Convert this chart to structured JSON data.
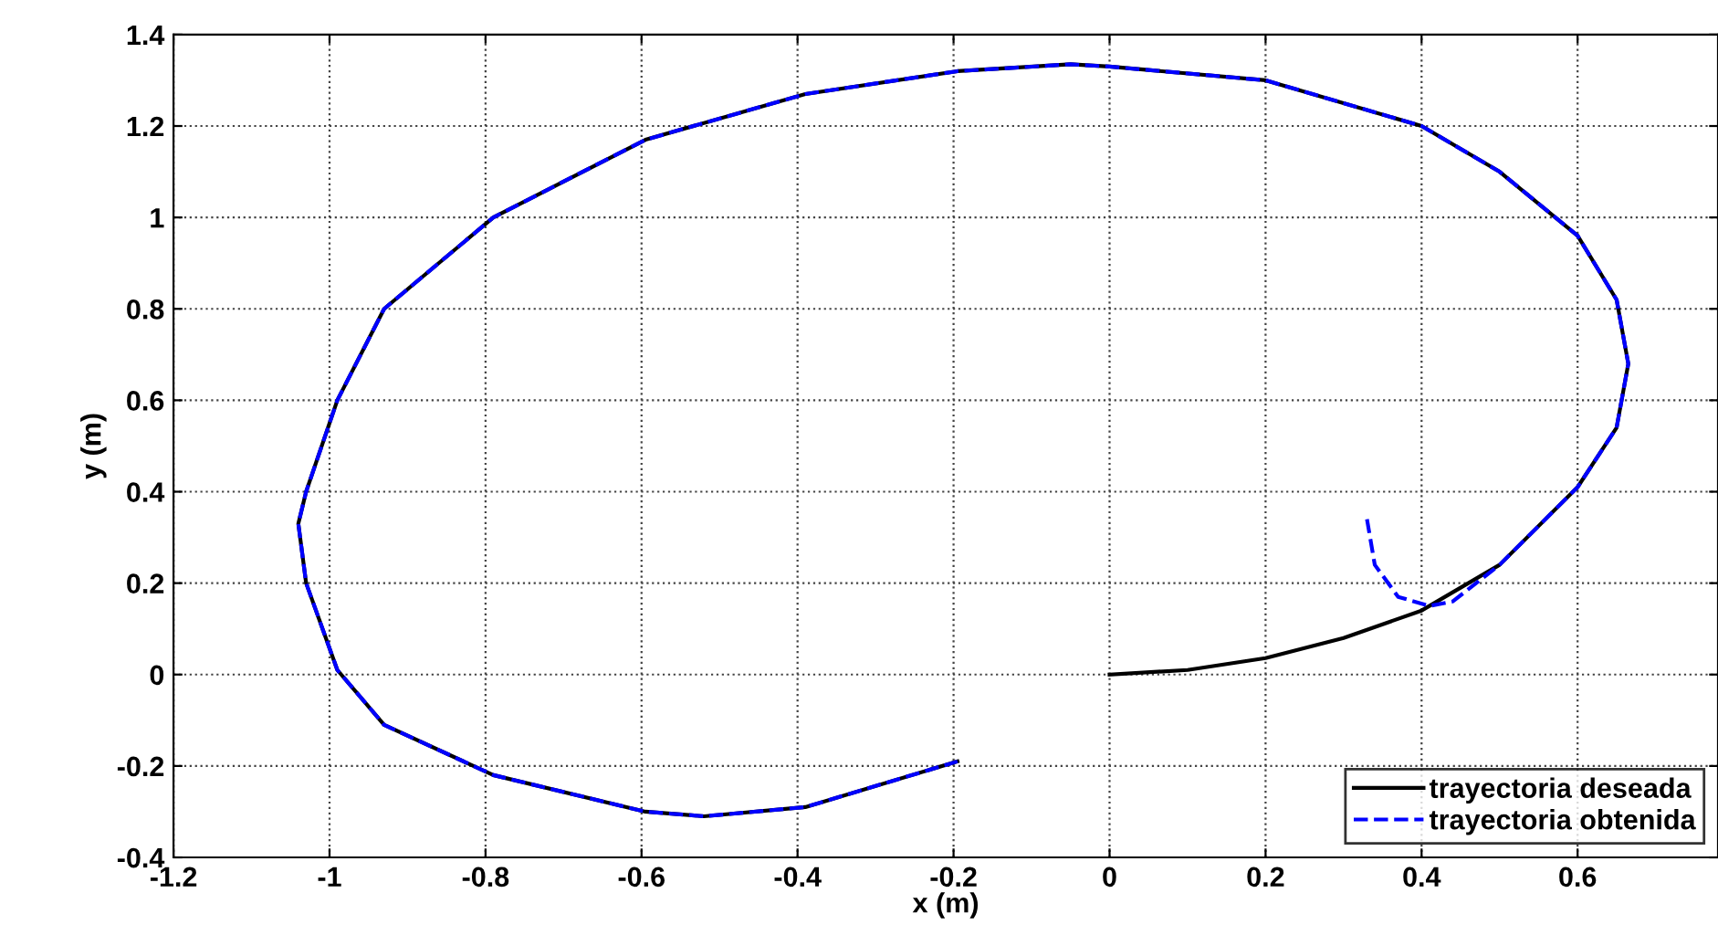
{
  "chart_data": {
    "type": "line",
    "xlabel": "x (m)",
    "ylabel": "y (m)",
    "xlim": [
      -1.2,
      0.78
    ],
    "ylim": [
      -0.4,
      1.4
    ],
    "xticks": [
      -1.2,
      -1,
      -0.8,
      -0.6,
      -0.4,
      -0.2,
      0,
      0.2,
      0.4,
      0.6
    ],
    "yticks": [
      -0.4,
      -0.2,
      0,
      0.2,
      0.4,
      0.6,
      0.8,
      1,
      1.2,
      1.4
    ],
    "grid": true,
    "legend": "bottom right",
    "series": [
      {
        "name": "trayectoria deseada",
        "color": "#000000",
        "line_style": "solid",
        "x": [
          0,
          0.1,
          0.2,
          0.3,
          0.4,
          0.5,
          0.6,
          0.65,
          0.665,
          0.65,
          0.6,
          0.5,
          0.4,
          0.2,
          0,
          -0.05,
          -0.195,
          -0.39,
          -0.595,
          -0.79,
          -0.93,
          -0.99,
          -1.03,
          -1.04,
          -1.03,
          -0.99,
          -0.93,
          -0.79,
          -0.595,
          -0.52,
          -0.39,
          -0.195
        ],
        "values": [
          0,
          0.01,
          0.036,
          0.08,
          0.14,
          0.24,
          0.41,
          0.54,
          0.68,
          0.82,
          0.96,
          1.1,
          1.2,
          1.3,
          1.33,
          1.335,
          1.32,
          1.27,
          1.17,
          1.0,
          0.8,
          0.6,
          0.4,
          0.33,
          0.2,
          0.01,
          -0.11,
          -0.22,
          -0.3,
          -0.31,
          -0.29,
          -0.19
        ]
      },
      {
        "name": "trayectoria obtenida",
        "color": "#0000ff",
        "line_style": "dashed",
        "x": [
          0.33,
          0.34,
          0.37,
          0.41,
          0.44,
          0.5,
          0.6,
          0.65,
          0.665,
          0.65,
          0.6,
          0.5,
          0.4,
          0.2,
          0,
          -0.05,
          -0.195,
          -0.39,
          -0.595,
          -0.79,
          -0.93,
          -0.99,
          -1.03,
          -1.04,
          -1.03,
          -0.99,
          -0.93,
          -0.79,
          -0.595,
          -0.52,
          -0.39,
          -0.195
        ],
        "values": [
          0.34,
          0.24,
          0.17,
          0.15,
          0.16,
          0.24,
          0.41,
          0.54,
          0.68,
          0.82,
          0.96,
          1.1,
          1.2,
          1.3,
          1.33,
          1.335,
          1.32,
          1.27,
          1.17,
          1.0,
          0.8,
          0.6,
          0.4,
          0.33,
          0.2,
          0.01,
          -0.11,
          -0.22,
          -0.3,
          -0.31,
          -0.29,
          -0.19
        ]
      }
    ]
  }
}
